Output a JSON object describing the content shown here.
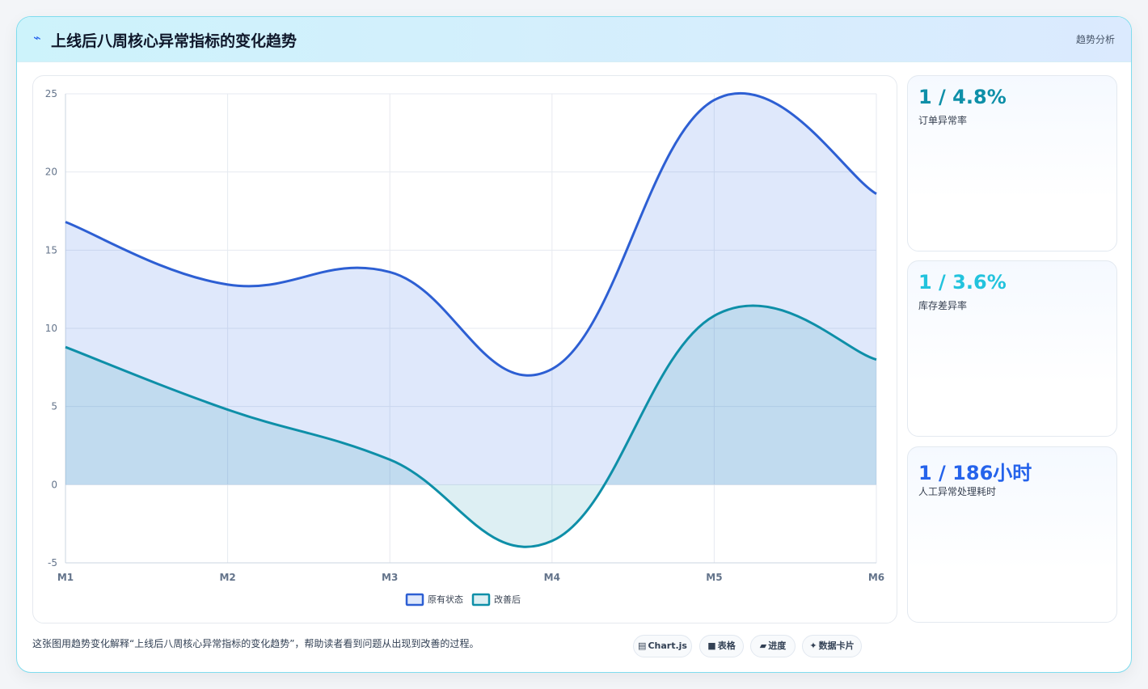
{
  "header": {
    "icon": "lightning-icon",
    "title": "上线后八周核心异常指标的变化趋势",
    "tag": "趋势分析"
  },
  "chart_data": {
    "type": "line",
    "categories": [
      "M1",
      "M2",
      "M3",
      "M4",
      "M5",
      "M6"
    ],
    "series": [
      {
        "name": "原有状态",
        "values": [
          16.8,
          12.8,
          13.6,
          7.4,
          24.6,
          18.6
        ],
        "color": "#2d5fd3",
        "fill": "rgba(59,110,230,0.16)"
      },
      {
        "name": "改善后",
        "values": [
          8.8,
          4.8,
          1.6,
          -3.6,
          10.8,
          8.0
        ],
        "color": "#0e8fa8",
        "fill": "rgba(14,143,168,0.14)"
      }
    ],
    "yticks": [
      25,
      20,
      15,
      10,
      5,
      0,
      -5
    ],
    "ylim": [
      -5,
      25
    ],
    "grid": true,
    "legend": "bottom",
    "filled": true,
    "smooth": true
  },
  "stats": [
    {
      "value": "1 / 4.8%",
      "label": "订单异常率",
      "color": "#0e8fa8"
    },
    {
      "value": "1 / 3.6%",
      "label": "库存差异率",
      "color": "#22c3dd"
    },
    {
      "value": "1 / 186小时",
      "label": "人工异常处理耗时",
      "color": "#2563eb"
    }
  ],
  "footer": {
    "note": "这张图用趋势变化解释“上线后八周核心异常指标的变化趋势”，帮助读者看到问题从出现到改善的过程。",
    "chips": [
      {
        "glyph": "▤",
        "label": "Chart.js",
        "icon": "chart-icon"
      },
      {
        "glyph": "■",
        "label": "表格",
        "icon": "table-icon"
      },
      {
        "glyph": "▰",
        "label": "进度",
        "icon": "progress-icon"
      },
      {
        "glyph": "✦",
        "label": "数据卡片",
        "icon": "sparkle-icon"
      }
    ]
  }
}
